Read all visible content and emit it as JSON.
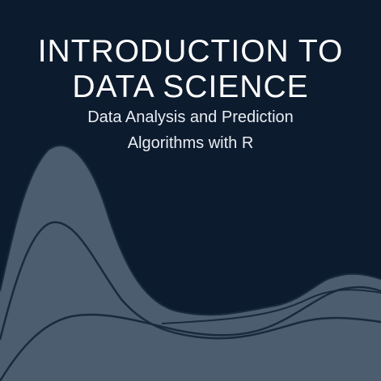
{
  "cover": {
    "title_line1": "INTRODUCTION TO",
    "title_line2": "DATA SCIENCE",
    "subtitle_line1": "Data Analysis and Prediction",
    "subtitle_line2": "Algorithms with R"
  },
  "colors": {
    "background": "#0d1b2e",
    "curve_fill": "#4d5d70",
    "curve_line": "#1a2a3d",
    "text": "#ffffff"
  }
}
